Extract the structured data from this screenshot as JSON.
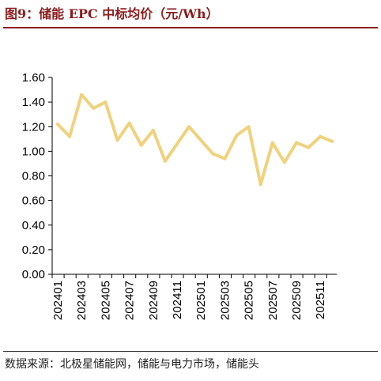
{
  "title": "图9：储能 EPC 中标均价（元/Wh）",
  "source": "数据来源：北极星储能网，储能与电力市场，储能头",
  "chart_data": {
    "type": "line",
    "title": "",
    "xlabel": "",
    "ylabel": "",
    "ylim": [
      0,
      1.6
    ],
    "yticks": [
      "0.00",
      "0.20",
      "0.40",
      "0.60",
      "0.80",
      "1.00",
      "1.20",
      "1.40",
      "1.60"
    ],
    "x": [
      "202401",
      "202402",
      "202403",
      "202404",
      "202405",
      "202406",
      "202407",
      "202408",
      "202409",
      "202410",
      "202411",
      "202412",
      "202501",
      "202502",
      "202503",
      "202504",
      "202505",
      "202506",
      "202507",
      "202508",
      "202509",
      "202510",
      "202511",
      "202512"
    ],
    "xtick_labels": [
      "202401",
      "202403",
      "202405",
      "202407",
      "202409",
      "202411",
      "202501",
      "202503",
      "202505",
      "202507",
      "202509",
      "202511"
    ],
    "series": [
      {
        "color": "#F0D27E",
        "values": [
          1.22,
          1.12,
          1.46,
          1.35,
          1.4,
          1.09,
          1.23,
          1.05,
          1.17,
          0.92,
          1.06,
          1.2,
          1.09,
          0.98,
          0.94,
          1.13,
          1.2,
          0.73,
          1.07,
          0.91,
          1.07,
          1.03,
          1.12,
          1.08
        ]
      }
    ],
    "grid": false,
    "legend": "none"
  }
}
